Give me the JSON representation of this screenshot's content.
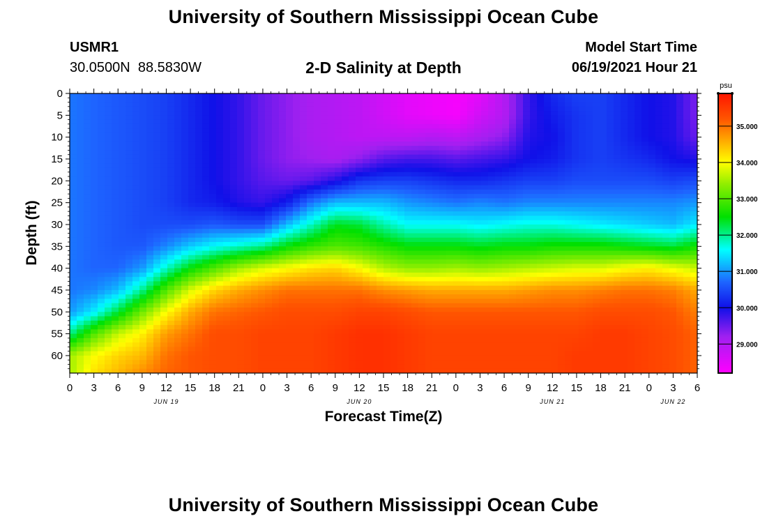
{
  "header": {
    "title_top": "University of Southern Mississippi Ocean Cube",
    "title_bottom": "University of Southern Mississippi Ocean Cube",
    "station_id": "USMR1",
    "station_coords": "30.0500N  88.5830W",
    "chart_title": "2-D Salinity at Depth",
    "model_start_label": "Model Start Time",
    "model_start_value": "06/19/2021 Hour 21"
  },
  "chart_data": {
    "type": "heatmap",
    "title": "2-D Salinity at Depth",
    "xlabel": "Forecast Time(Z)",
    "ylabel": "Depth (ft)",
    "colorbar_unit": "psu",
    "x_start_hour": 0,
    "x_end_hour": 78,
    "x_tick_step_hours": 3,
    "x_tick_labels": [
      "0",
      "3",
      "6",
      "9",
      "12",
      "15",
      "18",
      "21",
      "0",
      "3",
      "6",
      "9",
      "12",
      "15",
      "18",
      "21",
      "0",
      "3",
      "6",
      "9",
      "12",
      "15",
      "18",
      "21",
      "0",
      "3",
      "6"
    ],
    "date_labels": [
      {
        "text": "JUN 19",
        "hour": 12
      },
      {
        "text": "JUN 20",
        "hour": 36
      },
      {
        "text": "JUN 21",
        "hour": 60
      },
      {
        "text": "JUN 22",
        "hour": 75
      }
    ],
    "ylim": [
      0,
      64
    ],
    "y_ticks": [
      0,
      5,
      10,
      15,
      20,
      25,
      30,
      35,
      40,
      45,
      50,
      55,
      60
    ],
    "colorbar_range": [
      28.2,
      35.9
    ],
    "colorbar_ticks": [
      "29.000",
      "30.000",
      "31.000",
      "32.000",
      "33.000",
      "34.000",
      "35.000"
    ],
    "colorbar_tick_values": [
      29,
      30,
      31,
      32,
      33,
      34,
      35
    ],
    "colormap": [
      {
        "value": 28.2,
        "color": "#ff00ff"
      },
      {
        "value": 29.2,
        "color": "#a020f0"
      },
      {
        "value": 30.0,
        "color": "#1010e8"
      },
      {
        "value": 30.7,
        "color": "#1e64ff"
      },
      {
        "value": 31.6,
        "color": "#00ffff"
      },
      {
        "value": 32.5,
        "color": "#00e000"
      },
      {
        "value": 33.4,
        "color": "#90ee00"
      },
      {
        "value": 34.0,
        "color": "#ffff00"
      },
      {
        "value": 34.6,
        "color": "#ffaa00"
      },
      {
        "value": 35.2,
        "color": "#ff5500"
      },
      {
        "value": 35.9,
        "color": "#ff1500"
      }
    ],
    "profile_depths": [
      0,
      5,
      10,
      15,
      20,
      25,
      30,
      35,
      40,
      45,
      50,
      55,
      60,
      64
    ],
    "profiles": [
      {
        "hour": 0,
        "salinity": [
          30.8,
          30.8,
          30.8,
          30.8,
          30.8,
          30.8,
          30.8,
          30.8,
          30.8,
          30.8,
          31.0,
          32.0,
          33.5,
          33.5
        ]
      },
      {
        "hour": 3,
        "salinity": [
          30.7,
          30.7,
          30.7,
          30.7,
          30.7,
          30.7,
          30.7,
          30.7,
          30.7,
          30.9,
          31.5,
          33.0,
          34.0,
          34.2
        ]
      },
      {
        "hour": 6,
        "salinity": [
          30.6,
          30.6,
          30.6,
          30.6,
          30.6,
          30.6,
          30.6,
          30.6,
          30.7,
          31.2,
          32.3,
          33.7,
          34.3,
          34.5
        ]
      },
      {
        "hour": 9,
        "salinity": [
          30.5,
          30.5,
          30.5,
          30.5,
          30.5,
          30.5,
          30.5,
          30.6,
          31.0,
          32.0,
          33.2,
          34.1,
          34.5,
          34.8
        ]
      },
      {
        "hour": 12,
        "salinity": [
          30.4,
          30.4,
          30.4,
          30.4,
          30.4,
          30.4,
          30.5,
          30.9,
          31.8,
          33.0,
          34.0,
          34.7,
          35.0,
          35.1
        ]
      },
      {
        "hour": 15,
        "salinity": [
          30.2,
          30.2,
          30.2,
          30.2,
          30.2,
          30.2,
          30.5,
          31.3,
          32.5,
          33.8,
          34.6,
          35.0,
          35.2,
          35.2
        ]
      },
      {
        "hour": 18,
        "salinity": [
          30.0,
          30.0,
          30.0,
          30.0,
          30.0,
          30.1,
          30.6,
          31.6,
          33.0,
          34.3,
          35.0,
          35.3,
          35.3,
          35.3
        ]
      },
      {
        "hour": 21,
        "salinity": [
          29.8,
          29.8,
          29.8,
          29.8,
          29.8,
          29.9,
          30.5,
          31.8,
          33.5,
          34.6,
          35.1,
          35.3,
          35.3,
          35.3
        ]
      },
      {
        "hour": 24,
        "salinity": [
          29.5,
          29.5,
          29.5,
          29.5,
          29.6,
          29.8,
          30.5,
          32.0,
          33.8,
          34.8,
          35.2,
          35.4,
          35.4,
          35.4
        ]
      },
      {
        "hour": 27,
        "salinity": [
          29.3,
          29.3,
          29.3,
          29.3,
          29.5,
          30.1,
          31.2,
          32.5,
          34.0,
          35.0,
          35.3,
          35.4,
          35.4,
          35.4
        ]
      },
      {
        "hour": 30,
        "salinity": [
          29.1,
          29.1,
          29.1,
          29.2,
          29.6,
          30.8,
          31.8,
          32.8,
          34.2,
          35.0,
          35.3,
          35.4,
          35.4,
          35.4
        ]
      },
      {
        "hour": 33,
        "salinity": [
          29.0,
          29.0,
          29.0,
          29.1,
          29.9,
          31.2,
          32.4,
          33.0,
          34.3,
          35.0,
          35.3,
          35.5,
          35.5,
          35.5
        ]
      },
      {
        "hour": 36,
        "salinity": [
          28.9,
          28.9,
          28.9,
          29.3,
          30.3,
          31.2,
          32.3,
          32.9,
          34.0,
          35.0,
          35.4,
          35.6,
          35.6,
          35.6
        ]
      },
      {
        "hour": 39,
        "salinity": [
          28.7,
          28.7,
          28.9,
          29.6,
          30.4,
          31.2,
          31.9,
          32.7,
          33.6,
          34.8,
          35.4,
          35.6,
          35.6,
          35.6
        ]
      },
      {
        "hour": 42,
        "salinity": [
          28.5,
          28.5,
          28.9,
          29.7,
          30.4,
          31.0,
          31.6,
          32.5,
          33.4,
          34.7,
          35.3,
          35.5,
          35.5,
          35.5
        ]
      },
      {
        "hour": 45,
        "salinity": [
          28.4,
          28.4,
          29.0,
          29.7,
          30.3,
          30.9,
          31.6,
          32.5,
          33.4,
          34.6,
          35.2,
          35.4,
          35.4,
          35.4
        ]
      },
      {
        "hour": 48,
        "salinity": [
          28.3,
          28.3,
          28.9,
          29.6,
          30.2,
          30.8,
          31.6,
          32.5,
          33.5,
          34.6,
          35.2,
          35.4,
          35.4,
          35.4
        ]
      },
      {
        "hour": 51,
        "salinity": [
          28.5,
          28.7,
          29.1,
          29.7,
          30.2,
          30.9,
          31.5,
          32.4,
          33.4,
          34.6,
          35.2,
          35.4,
          35.4,
          35.4
        ]
      },
      {
        "hour": 54,
        "salinity": [
          29.0,
          29.0,
          29.3,
          29.8,
          30.3,
          30.8,
          31.6,
          32.5,
          33.5,
          34.6,
          35.2,
          35.4,
          35.4,
          35.4
        ]
      },
      {
        "hour": 57,
        "salinity": [
          29.8,
          29.8,
          29.9,
          30.0,
          30.4,
          30.9,
          31.7,
          32.5,
          33.6,
          34.7,
          35.2,
          35.4,
          35.4,
          35.4
        ]
      },
      {
        "hour": 60,
        "salinity": [
          30.2,
          30.1,
          30.0,
          30.1,
          30.4,
          30.9,
          31.7,
          32.6,
          33.7,
          34.8,
          35.2,
          35.4,
          35.4,
          35.4
        ]
      },
      {
        "hour": 63,
        "salinity": [
          30.4,
          30.3,
          30.3,
          30.3,
          30.5,
          30.9,
          31.6,
          32.6,
          33.8,
          34.8,
          35.2,
          35.4,
          35.5,
          35.5
        ]
      },
      {
        "hour": 66,
        "salinity": [
          30.4,
          30.4,
          30.4,
          30.4,
          30.5,
          30.9,
          31.5,
          32.6,
          33.8,
          34.9,
          35.3,
          35.5,
          35.5,
          35.5
        ]
      },
      {
        "hour": 69,
        "salinity": [
          30.2,
          30.2,
          30.2,
          30.3,
          30.5,
          30.9,
          31.4,
          32.5,
          34.0,
          35.0,
          35.3,
          35.5,
          35.5,
          35.5
        ]
      },
      {
        "hour": 72,
        "salinity": [
          30.0,
          30.0,
          30.0,
          30.2,
          30.5,
          30.9,
          31.3,
          32.4,
          34.1,
          35.0,
          35.3,
          35.4,
          35.4,
          35.4
        ]
      },
      {
        "hour": 75,
        "salinity": [
          29.9,
          29.9,
          29.9,
          30.0,
          30.4,
          30.9,
          31.2,
          32.3,
          33.9,
          34.9,
          35.2,
          35.3,
          35.3,
          35.3
        ]
      },
      {
        "hour": 78,
        "salinity": [
          29.4,
          29.4,
          29.5,
          29.9,
          30.5,
          31.0,
          31.5,
          32.6,
          33.7,
          34.6,
          34.9,
          35.1,
          35.1,
          35.1
        ]
      }
    ]
  }
}
